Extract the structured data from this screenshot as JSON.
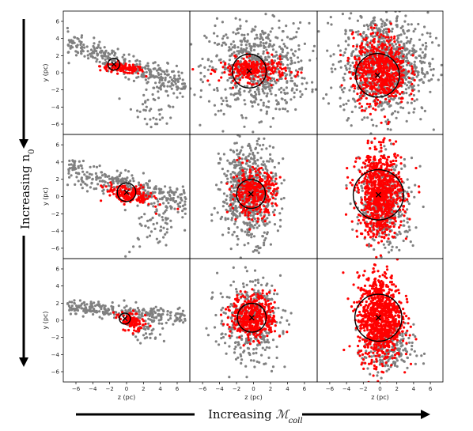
{
  "chart_data": {
    "type": "scatter",
    "layout_grid": "3x3",
    "x_label": "z (pc)",
    "y_label": "y (pc)",
    "x_ticks": [
      -6,
      -4,
      -2,
      0,
      2,
      4,
      6
    ],
    "y_ticks": [
      -6,
      -4,
      -2,
      0,
      2,
      4,
      6
    ],
    "xlim": [
      -7.5,
      7.5
    ],
    "ylim": [
      -7.2,
      7.2
    ],
    "grid": false,
    "row_arrow_label": "Increasing n",
    "row_arrow_label_sub": "0",
    "col_arrow_label": "Increasing ",
    "col_arrow_label_math": "ℳ",
    "col_arrow_label_sub": "coll",
    "colors": {
      "background_particles": "#808080",
      "cluster_particles": "#ff0000",
      "circle": "#000000",
      "center_marker": "#000000"
    },
    "panels": [
      {
        "row": 0,
        "col": 0,
        "center": [
          -1.5,
          1.0
        ],
        "radius": 0.7,
        "grey": {
          "n": 300,
          "shape": "band",
          "x_range": [
            -7,
            7
          ],
          "slope": -0.35,
          "intercept": 1.0,
          "spread": 1.3,
          "extra": {
            "cx": 3.5,
            "cy": -3.5,
            "sx": 1.5,
            "sy": 2.0,
            "n": 60
          }
        },
        "red": {
          "n": 130,
          "shape": "elongated",
          "cx": -0.5,
          "cy": 0.5,
          "sx": 1.3,
          "sy": 0.25,
          "rot": -0.1
        }
      },
      {
        "row": 0,
        "col": 1,
        "center": [
          -0.5,
          0.2
        ],
        "radius": 2.0,
        "grey": {
          "n": 650,
          "shape": "blob",
          "cx": 0.5,
          "cy": 0.5,
          "sx": 3.0,
          "sy": 2.6
        },
        "red": {
          "n": 260,
          "shape": "blob",
          "cx": 0.0,
          "cy": 0.3,
          "sx": 1.9,
          "sy": 0.7
        }
      },
      {
        "row": 0,
        "col": 2,
        "center": [
          -0.3,
          -0.3
        ],
        "radius": 2.6,
        "grey": {
          "n": 900,
          "shape": "blob",
          "cx": 0.5,
          "cy": 1.0,
          "sx": 2.6,
          "sy": 3.0
        },
        "red": {
          "n": 620,
          "shape": "blob",
          "cx": 0.0,
          "cy": 0.3,
          "sx": 1.6,
          "sy": 2.0
        }
      },
      {
        "row": 1,
        "col": 0,
        "center": [
          0.0,
          0.5
        ],
        "radius": 1.1,
        "grey": {
          "n": 320,
          "shape": "band",
          "x_range": [
            -7,
            7
          ],
          "slope": -0.25,
          "intercept": 1.2,
          "spread": 1.4,
          "extra": {
            "cx": 3.5,
            "cy": -3.0,
            "sx": 1.5,
            "sy": 2.0,
            "n": 70
          }
        },
        "red": {
          "n": 170,
          "shape": "elongated",
          "cx": 0.3,
          "cy": 0.2,
          "sx": 1.4,
          "sy": 0.5,
          "rot": -0.2
        }
      },
      {
        "row": 1,
        "col": 1,
        "center": [
          -0.3,
          0.3
        ],
        "radius": 1.7,
        "grey": {
          "n": 650,
          "shape": "blob",
          "cx": -0.5,
          "cy": 0.5,
          "sx": 1.6,
          "sy": 2.8
        },
        "red": {
          "n": 340,
          "shape": "blob",
          "cx": 0.0,
          "cy": 0.5,
          "sx": 1.3,
          "sy": 1.3
        }
      },
      {
        "row": 1,
        "col": 2,
        "center": [
          -0.2,
          0.2
        ],
        "radius": 3.0,
        "grey": {
          "n": 380,
          "shape": "blob",
          "cx": 0.8,
          "cy": -1.0,
          "sx": 1.6,
          "sy": 2.6
        },
        "red": {
          "n": 820,
          "shape": "blob",
          "cx": 0.0,
          "cy": 0.3,
          "sx": 1.3,
          "sy": 2.5
        }
      },
      {
        "row": 2,
        "col": 0,
        "center": [
          -0.2,
          0.2
        ],
        "radius": 0.65,
        "grey": {
          "n": 260,
          "shape": "band",
          "x_range": [
            -7,
            7
          ],
          "slope": -0.1,
          "intercept": 1.0,
          "spread": 0.8,
          "extra": {
            "cx": 2.5,
            "cy": -1.0,
            "sx": 1.0,
            "sy": 0.8,
            "n": 40
          }
        },
        "red": {
          "n": 110,
          "shape": "elongated",
          "cx": 0.6,
          "cy": -0.2,
          "sx": 0.8,
          "sy": 0.5,
          "rot": -0.4
        }
      },
      {
        "row": 2,
        "col": 1,
        "center": [
          -0.2,
          0.3
        ],
        "radius": 1.7,
        "grey": {
          "n": 380,
          "shape": "blob",
          "cx": -0.5,
          "cy": 0.0,
          "sx": 1.8,
          "sy": 2.4
        },
        "red": {
          "n": 420,
          "shape": "blob",
          "cx": 0.0,
          "cy": 0.4,
          "sx": 1.3,
          "sy": 1.3
        }
      },
      {
        "row": 2,
        "col": 2,
        "center": [
          -0.2,
          0.3
        ],
        "radius": 2.8,
        "grey": {
          "n": 200,
          "shape": "blob",
          "cx": 1.0,
          "cy": -3.5,
          "sx": 1.5,
          "sy": 1.5
        },
        "red": {
          "n": 950,
          "shape": "blob",
          "cx": 0.0,
          "cy": 0.3,
          "sx": 1.3,
          "sy": 2.5
        }
      }
    ]
  }
}
